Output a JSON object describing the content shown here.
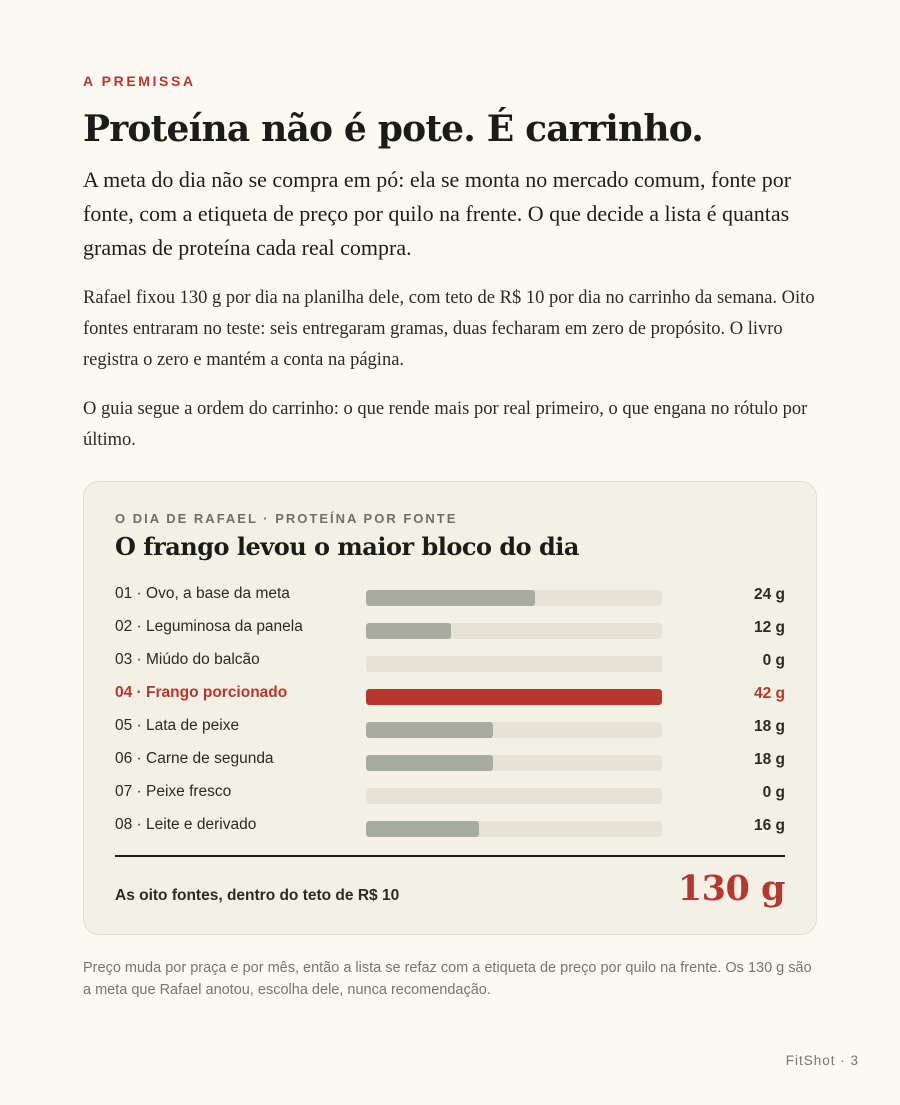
{
  "kicker": "A PREMISSA",
  "title": "Proteína não é pote. É carrinho.",
  "lead": "A meta do dia não se compra em pó: ela se monta no mercado comum, fonte por fonte, com a etiqueta de preço por quilo na frente. O que decide a lista é quantas gramas de proteína cada real compra.",
  "paragraphs": [
    "Rafael fixou 130 g por dia na planilha dele, com teto de R$ 10 por dia no carrinho da semana. Oito fontes entraram no teste: seis entregaram gramas, duas fecharam em zero de propósito. O livro registra o zero e mantém a conta na página.",
    "O guia segue a ordem do carrinho: o que rende mais por real primeiro, o que engana no rótulo por último."
  ],
  "card": {
    "kicker": "O DIA DE RAFAEL · PROTEÍNA POR FONTE",
    "title": "O frango levou o maior bloco do dia",
    "total_label": "As oito fontes, dentro do teto de R$ 10",
    "total_value": "130 g"
  },
  "chart_data": {
    "type": "bar",
    "orientation": "horizontal",
    "title": "O frango levou o maior bloco do dia",
    "unit": "g",
    "xlim": [
      0,
      42
    ],
    "categories": [
      "01 · Ovo, a base da meta",
      "02 · Leguminosa da panela",
      "03 · Miúdo do balcão",
      "04 · Frango porcionado",
      "05 · Lata de peixe",
      "06 · Carne de segunda",
      "07 · Peixe fresco",
      "08 · Leite e derivado"
    ],
    "values": [
      24,
      12,
      0,
      42,
      18,
      18,
      0,
      16
    ],
    "value_labels": [
      "24 g",
      "12 g",
      "0 g",
      "42 g",
      "18 g",
      "18 g",
      "0 g",
      "16 g"
    ],
    "highlight_index": 3,
    "colors": {
      "bar": "#a7ac9f",
      "highlight": "#b8372d",
      "track": "#e6e2d6"
    }
  },
  "note": "Preço muda por praça e por mês, então a lista se refaz com a etiqueta de preço por quilo na frente. Os 130 g são a meta que Rafael anotou, escolha dele, nunca recomendação.",
  "footer": "FitShot · 3"
}
